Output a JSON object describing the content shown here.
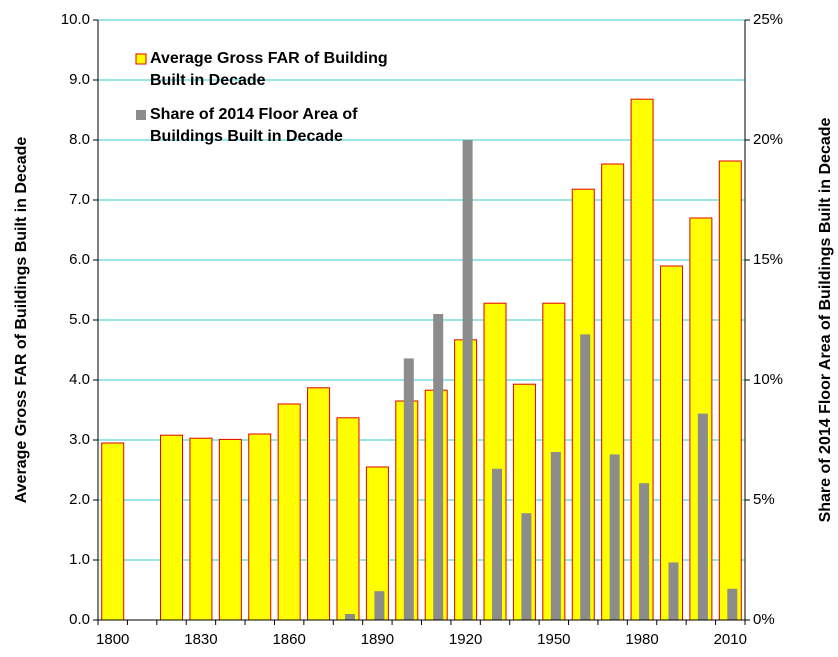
{
  "chart_data": {
    "type": "bar",
    "categories": [
      "1800",
      null,
      null,
      "1830",
      null,
      null,
      "1860",
      null,
      null,
      "1890",
      null,
      null,
      "1920",
      null,
      null,
      "1950",
      null,
      null,
      "1980",
      null,
      null,
      "2010"
    ],
    "series": [
      {
        "name": "Average Gross FAR of Building Built in Decade",
        "color": "#ffff00",
        "edgecolor": "#e00000",
        "values": [
          2.95,
          null,
          3.08,
          3.03,
          3.01,
          3.1,
          3.6,
          3.87,
          3.37,
          2.55,
          3.65,
          3.83,
          4.67,
          5.28,
          3.93,
          5.28,
          7.18,
          7.6,
          8.68,
          5.9,
          6.7,
          7.65
        ]
      },
      {
        "name": "Share of 2014 Floor Area of Buildings Built in Decade",
        "color": "#8c8c8c",
        "axis": "y2",
        "values": [
          null,
          null,
          null,
          null,
          null,
          null,
          null,
          null,
          0.25,
          1.2,
          10.9,
          12.75,
          20.0,
          6.3,
          4.45,
          7.0,
          11.9,
          6.9,
          5.7,
          2.4,
          8.6,
          1.3
        ]
      }
    ],
    "ylabel": "Average Gross FAR of Buildings Built in Decade",
    "y2label": "Share of 2014 Floor Area of Buildings Built in Decade",
    "ylim": [
      0,
      10
    ],
    "yticks": [
      {
        "value": 0,
        "label": "0.0"
      },
      {
        "value": 1,
        "label": "1.0"
      },
      {
        "value": 2,
        "label": "2.0"
      },
      {
        "value": 3,
        "label": "3.0"
      },
      {
        "value": 4,
        "label": "4.0"
      },
      {
        "value": 5,
        "label": "5.0"
      },
      {
        "value": 6,
        "label": "6.0"
      },
      {
        "value": 7,
        "label": "7.0"
      },
      {
        "value": 8,
        "label": "8.0"
      },
      {
        "value": 9,
        "label": "9.0"
      },
      {
        "value": 10,
        "label": "10.0"
      }
    ],
    "y2lim": [
      0,
      25
    ],
    "y2ticks": [
      {
        "value": 0,
        "label": "0%"
      },
      {
        "value": 5,
        "label": "5%"
      },
      {
        "value": 10,
        "label": "10%"
      },
      {
        "value": 15,
        "label": "15%"
      },
      {
        "value": 20,
        "label": "20%"
      },
      {
        "value": 25,
        "label": "25%"
      }
    ],
    "grid": true,
    "grid_color": "#33cccc",
    "legend": "upper left"
  }
}
